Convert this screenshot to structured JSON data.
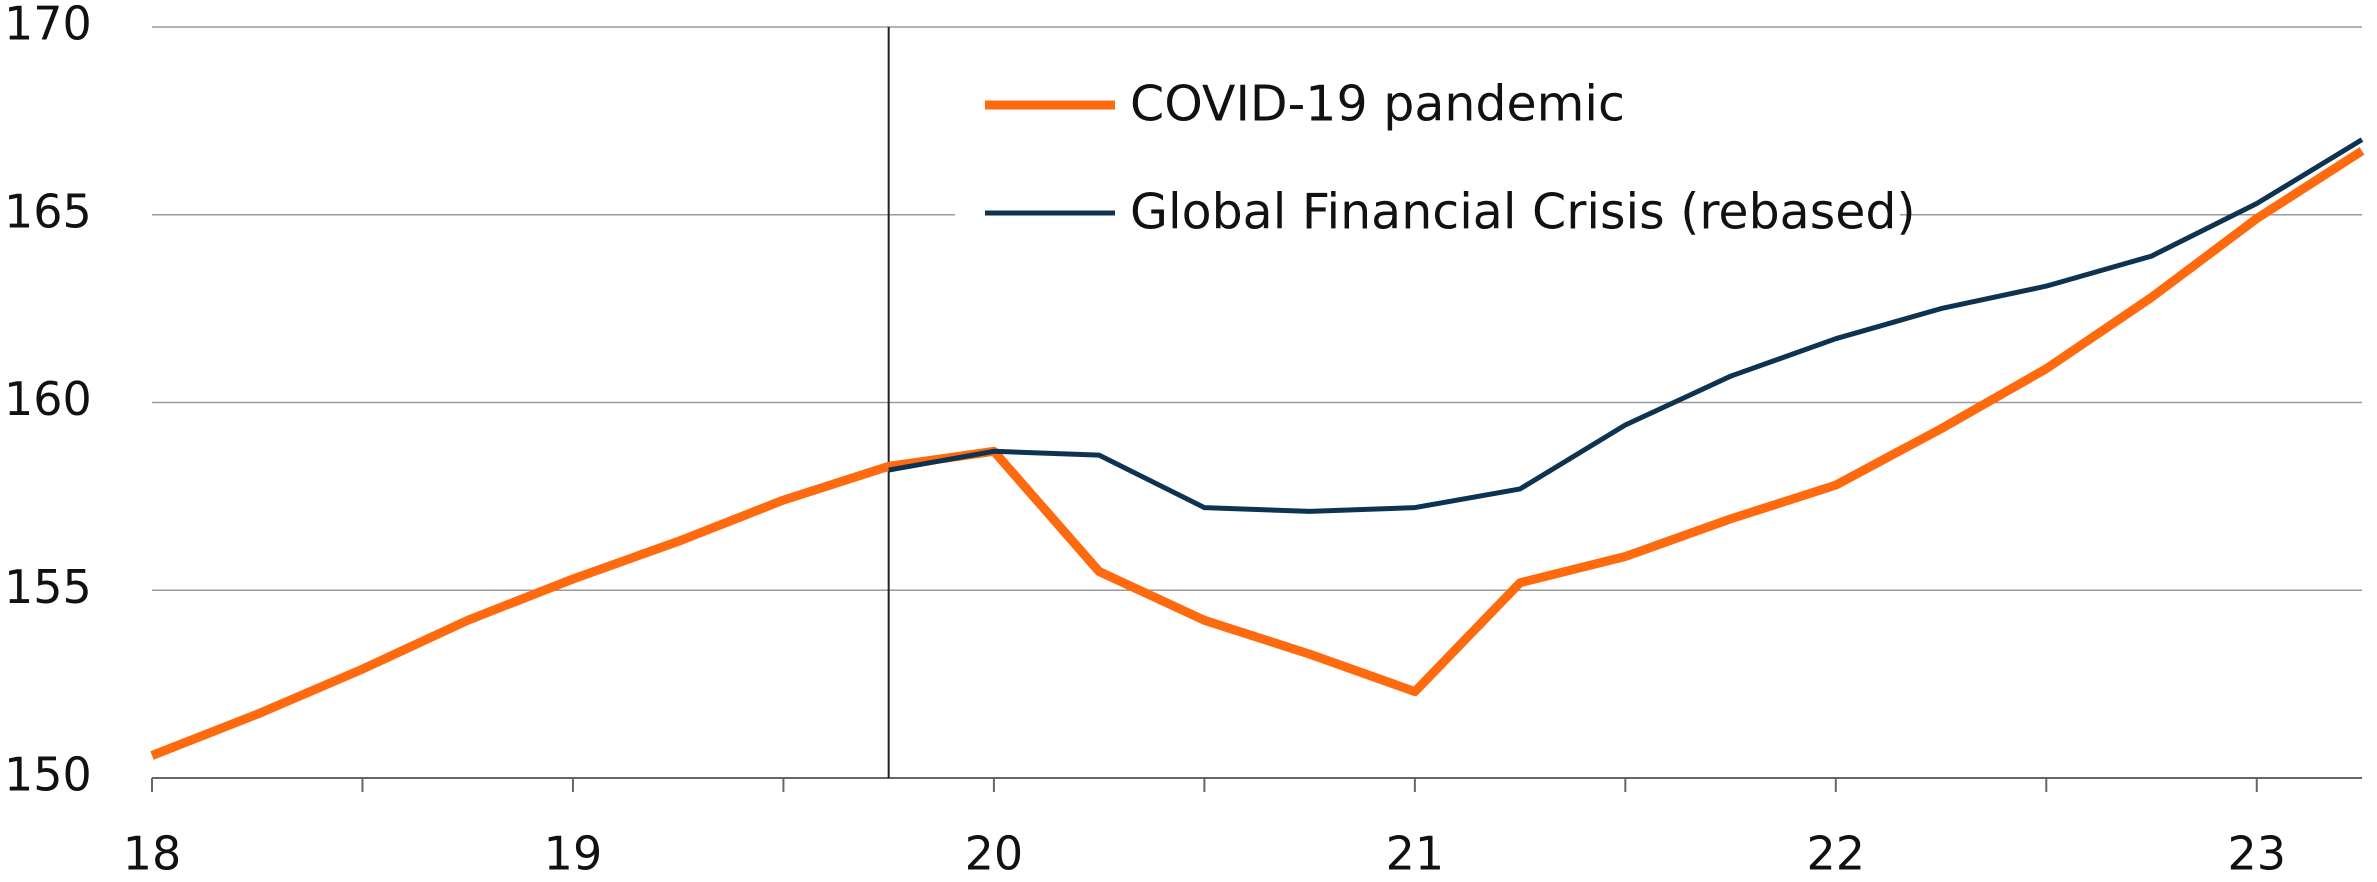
{
  "chart_data": {
    "type": "line",
    "x": [
      18,
      18.25,
      18.5,
      18.75,
      19,
      19.25,
      19.5,
      19.75,
      20,
      20.25,
      20.5,
      20.75,
      21,
      21.25,
      21.5,
      21.75,
      22,
      22.25,
      22.5,
      22.75,
      23,
      23.25
    ],
    "series": [
      {
        "name": "COVID-19 pandemic",
        "color": "#ff6a0e",
        "width": 9,
        "values": [
          150.6,
          151.7,
          152.9,
          154.2,
          155.3,
          156.3,
          157.4,
          158.3,
          158.7,
          155.5,
          154.2,
          153.3,
          152.3,
          155.2,
          155.9,
          156.9,
          157.8,
          159.3,
          160.9,
          162.8,
          164.9,
          166.7
        ]
      },
      {
        "name": "Global Financial Crisis (rebased)",
        "color": "#0e3350",
        "width": 5,
        "values": [
          null,
          null,
          null,
          null,
          null,
          null,
          null,
          158.2,
          158.7,
          158.6,
          157.2,
          157.1,
          157.2,
          157.7,
          159.4,
          160.7,
          161.7,
          162.5,
          163.1,
          163.9,
          165.3,
          167.0
        ]
      }
    ],
    "xlim": [
      18,
      23.25
    ],
    "xticks": [
      18,
      19,
      20,
      21,
      22,
      23
    ],
    "xminor_ticks": [
      18.5,
      19.5,
      20.5,
      21.5,
      22.5
    ],
    "ylim": [
      150,
      170
    ],
    "yticks": [
      150,
      155,
      160,
      165,
      170
    ],
    "grid": true,
    "vline": 19.75,
    "legend": "top"
  }
}
